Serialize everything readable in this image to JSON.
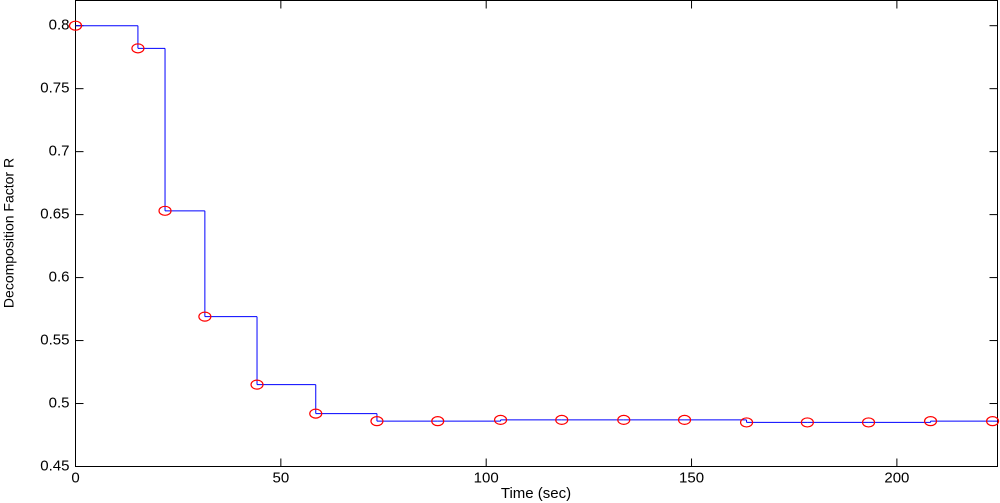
{
  "chart_data": {
    "type": "line",
    "step": "post",
    "xlabel": "Time (sec)",
    "ylabel": "Decomposition Factor R",
    "x": [
      0,
      15.2,
      21.8,
      31.5,
      44.2,
      58.5,
      73.4,
      88.2,
      103.5,
      118.4,
      133.5,
      148.3,
      163.4,
      178.2,
      193.1,
      208.2,
      223.3
    ],
    "values": [
      0.8,
      0.782,
      0.653,
      0.569,
      0.515,
      0.492,
      0.486,
      0.486,
      0.487,
      0.487,
      0.487,
      0.487,
      0.485,
      0.485,
      0.485,
      0.486,
      0.486
    ],
    "line_color": "#0000ff",
    "marker_color": "#ff0000",
    "xlim": [
      0,
      224.5
    ],
    "ylim": [
      0.45,
      0.82
    ],
    "xticks": [
      0,
      50,
      100,
      150,
      200
    ],
    "yticks": [
      0.45,
      0.5,
      0.55,
      0.6,
      0.65,
      0.7,
      0.75,
      0.8
    ],
    "grid": false
  }
}
